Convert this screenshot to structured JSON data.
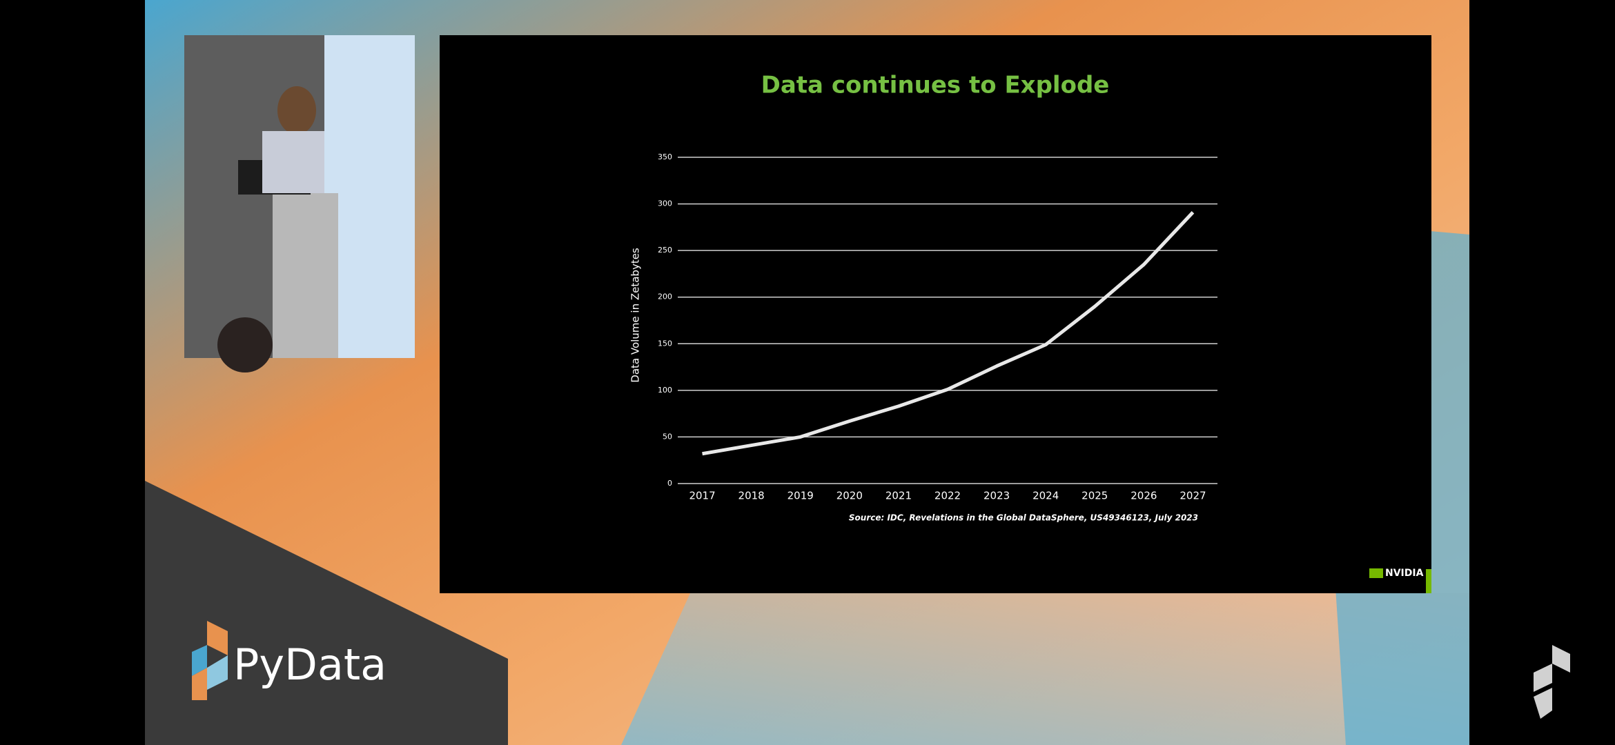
{
  "chart_data": {
    "type": "line",
    "title": "Data continues to Explode",
    "y_label": "Data Volume in Zetabytes",
    "source": "Source: IDC, Revelations in the Global DataSphere, US49346123, July 2023",
    "categories": [
      "2017",
      "2018",
      "2019",
      "2020",
      "2021",
      "2022",
      "2023",
      "2024",
      "2025",
      "2026",
      "2027"
    ],
    "values": [
      32,
      41,
      50,
      67,
      83,
      101,
      126,
      149,
      190,
      235,
      291
    ],
    "color": "#e8e8e8",
    "ylim": [
      0,
      350
    ],
    "yticks": [
      0,
      50,
      100,
      150,
      200,
      250,
      300,
      350
    ],
    "grid": true
  },
  "branding": {
    "event": "PyData",
    "slide_logo": "NVIDIA"
  }
}
